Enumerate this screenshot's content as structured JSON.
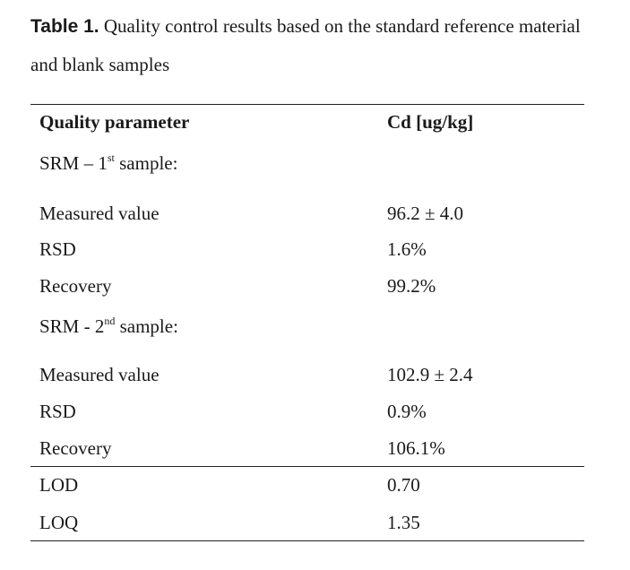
{
  "caption": {
    "label": "Table 1.",
    "text": "Quality control results based on the standard reference material and blank samples"
  },
  "table": {
    "headers": [
      "Quality parameter",
      "Cd [ug/kg]"
    ],
    "group1": {
      "prefix": "SRM – 1",
      "ordinal": "st",
      "suffix": " sample:"
    },
    "group1_rows": [
      {
        "param": "Measured value",
        "value": "96.2 ± 4.0"
      },
      {
        "param": "RSD",
        "value": "1.6%"
      },
      {
        "param": "Recovery",
        "value": "99.2%"
      }
    ],
    "group2": {
      "prefix": "SRM - 2",
      "ordinal": "nd",
      "suffix": " sample:"
    },
    "group2_rows": [
      {
        "param": "Measured value",
        "value": "102.9 ± 2.4"
      },
      {
        "param": "RSD",
        "value": "0.9%"
      },
      {
        "param": "Recovery",
        "value": "106.1%"
      }
    ],
    "limit_rows": [
      {
        "param": "LOD",
        "value": "0.70"
      },
      {
        "param": "LOQ",
        "value": "1.35"
      }
    ]
  }
}
